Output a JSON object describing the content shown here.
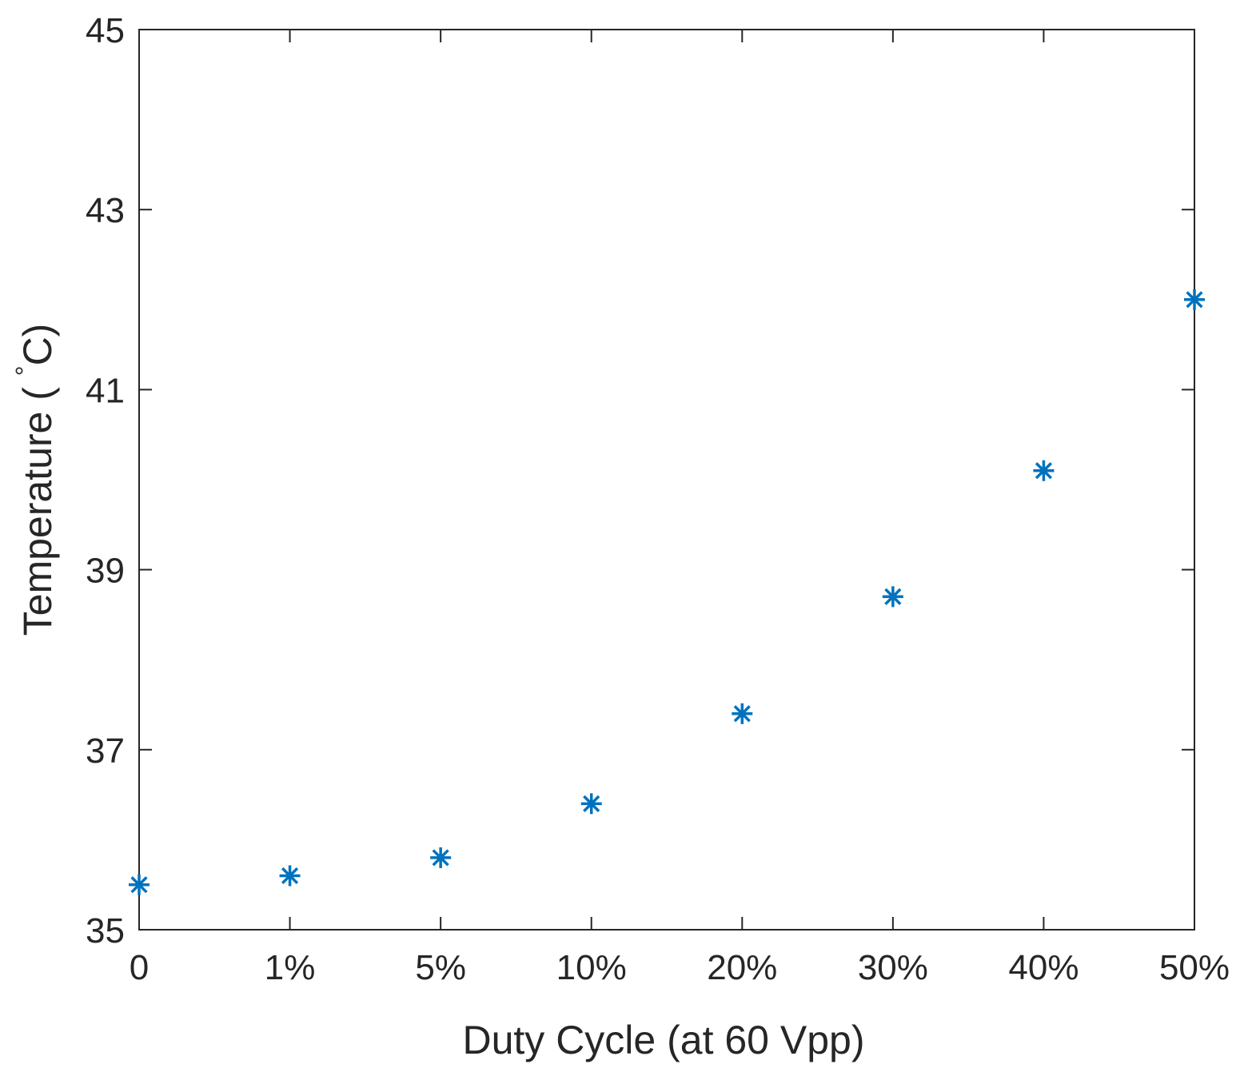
{
  "chart_data": {
    "type": "scatter",
    "title": "",
    "xlabel": "Duty Cycle (at 60 Vpp)",
    "ylabel": "Temperature ( ",
    "ylabel_unit_degree": "°",
    "ylabel_unit": "C)",
    "categories": [
      "0",
      "1%",
      "5%",
      "10%",
      "20%",
      "30%",
      "40%",
      "50%"
    ],
    "series": [
      {
        "name": "Temperature",
        "marker": "asterisk",
        "color": "#0072BD",
        "values": [
          35.5,
          35.6,
          35.8,
          36.4,
          37.4,
          38.7,
          40.1,
          42.0
        ]
      }
    ],
    "ylim": [
      35,
      45
    ],
    "yticks": [
      "35",
      "37",
      "39",
      "41",
      "43",
      "45"
    ],
    "ytick_values": [
      35,
      37,
      39,
      41,
      43,
      45
    ],
    "grid": false,
    "legend": "none",
    "box": true
  }
}
